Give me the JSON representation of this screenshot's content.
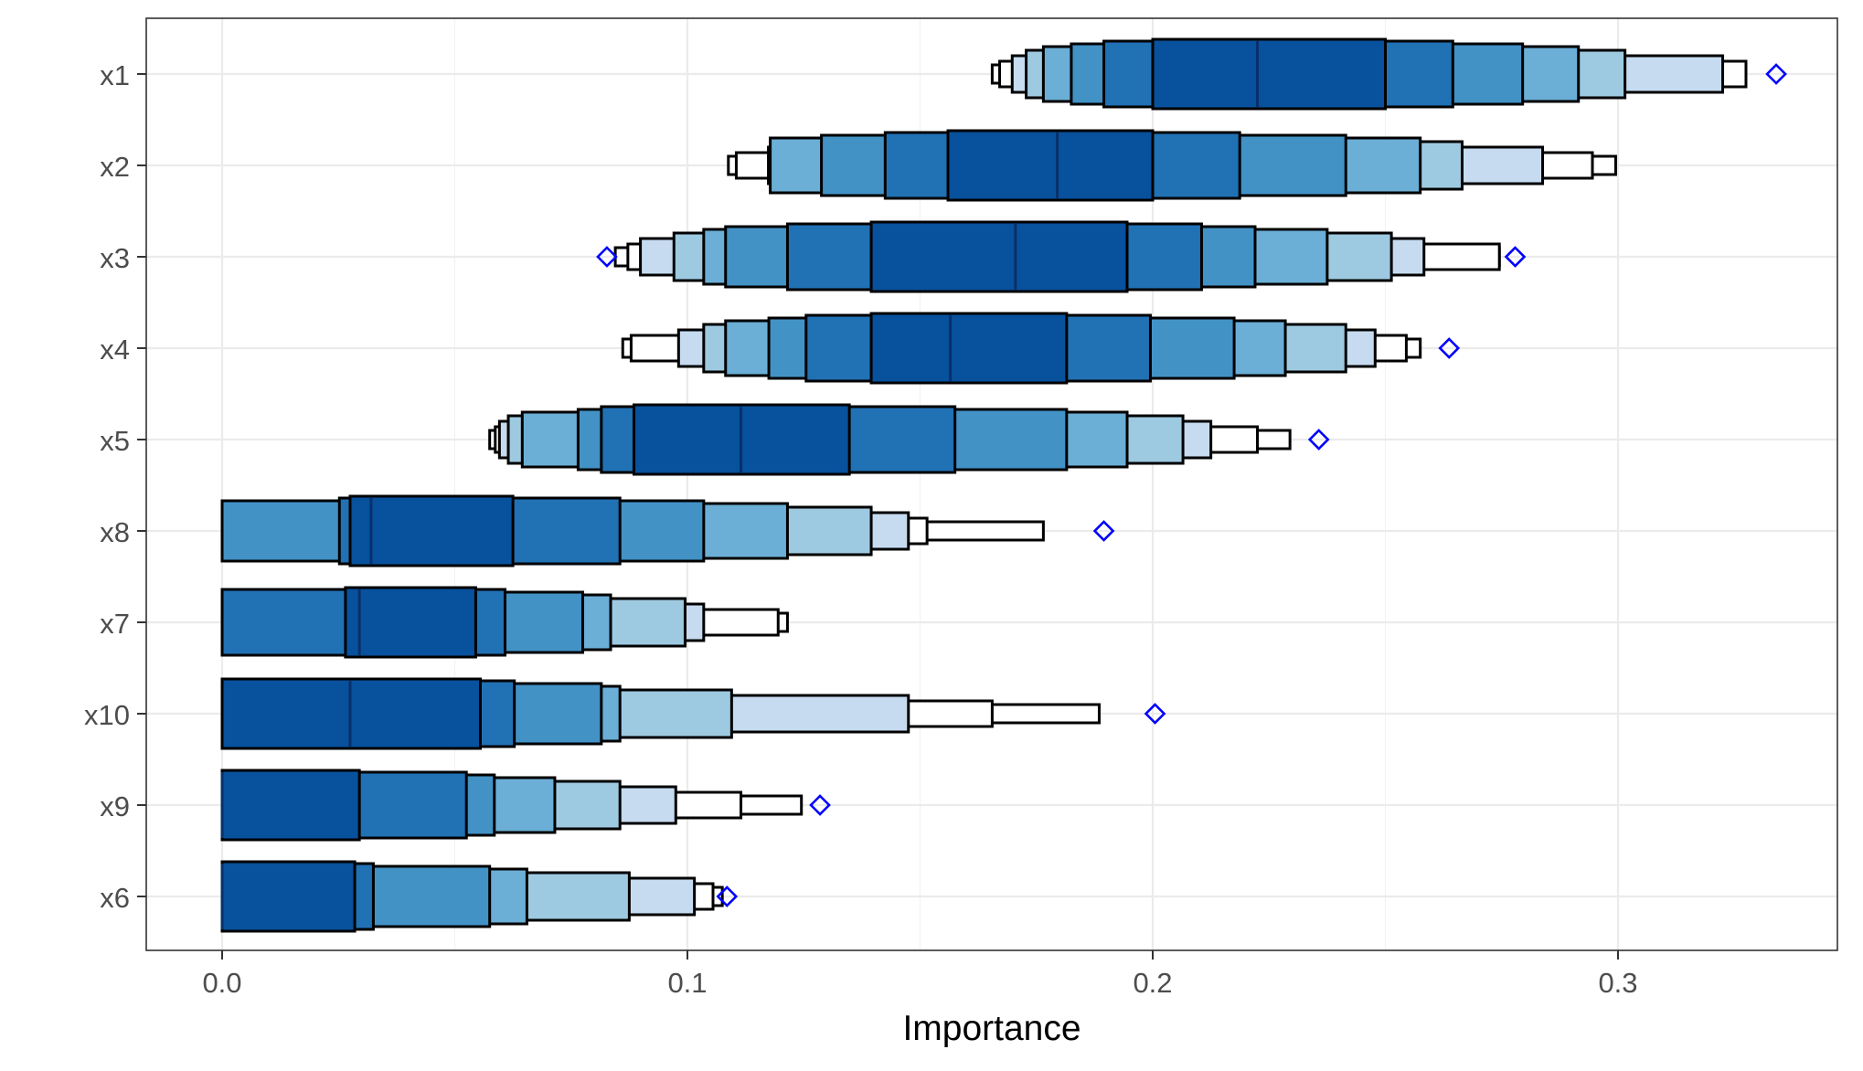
{
  "chart_data": {
    "type": "letter-value boxplot",
    "xlabel": "Importance",
    "ylabel": "",
    "title": "",
    "xlim": [
      -0.0165,
      0.3485
    ],
    "x_ticks": [
      0.0,
      0.1,
      0.2,
      0.3
    ],
    "x_tick_labels": [
      "0.0",
      "0.1",
      "0.2",
      "0.3"
    ],
    "grid": true,
    "shade_colors": [
      "#08519c",
      "#2171b5",
      "#4292c6",
      "#6baed6",
      "#9ecae1",
      "#c6dbef",
      "#ffffff"
    ],
    "outlier_color": "#0000ff",
    "rows": [
      {
        "label": "x1",
        "median": 0.2225,
        "outliers": [
          0.334
        ],
        "boxes": [
          [
            0.2,
            0.25
          ],
          [
            0.1895,
            0.2645
          ],
          [
            0.1825,
            0.2795
          ],
          [
            0.1765,
            0.2915
          ],
          [
            0.1728,
            0.3015
          ],
          [
            0.1698,
            0.3225
          ],
          [
            0.1671,
            0.3275
          ],
          [
            0.1655,
            0.3275
          ]
        ]
      },
      {
        "label": "x2",
        "median": 0.1795,
        "outliers": [],
        "boxes": [
          [
            0.156,
            0.2
          ],
          [
            0.1425,
            0.2187
          ],
          [
            0.1288,
            0.2415
          ],
          [
            0.1178,
            0.2575
          ],
          [
            0.1183,
            0.2665
          ],
          [
            0.1174,
            0.2838
          ],
          [
            0.1105,
            0.2945
          ],
          [
            0.1088,
            0.2995
          ]
        ]
      },
      {
        "label": "x3",
        "median": 0.1705,
        "outliers": [
          0.0827,
          0.2779
        ],
        "boxes": [
          [
            0.1395,
            0.1945
          ],
          [
            0.1215,
            0.2105
          ],
          [
            0.1082,
            0.222
          ],
          [
            0.1035,
            0.2375
          ],
          [
            0.0971,
            0.2513
          ],
          [
            0.0899,
            0.2583
          ],
          [
            0.0872,
            0.2745
          ],
          [
            0.0845,
            0.2745
          ]
        ]
      },
      {
        "label": "x4",
        "median": 0.1565,
        "outliers": [
          0.2637
        ],
        "boxes": [
          [
            0.1395,
            0.1815
          ],
          [
            0.1255,
            0.1995
          ],
          [
            0.1175,
            0.2175
          ],
          [
            0.1082,
            0.2285
          ],
          [
            0.1035,
            0.2415
          ],
          [
            0.0981,
            0.2478
          ],
          [
            0.0879,
            0.2545
          ],
          [
            0.0861,
            0.2575
          ]
        ]
      },
      {
        "label": "x5",
        "median": 0.1115,
        "outliers": [
          0.2357
        ],
        "boxes": [
          [
            0.0885,
            0.1348
          ],
          [
            0.0815,
            0.1575
          ],
          [
            0.0765,
            0.1815
          ],
          [
            0.0645,
            0.1945
          ],
          [
            0.0615,
            0.2065
          ],
          [
            0.0596,
            0.2125
          ],
          [
            0.0587,
            0.2225
          ],
          [
            0.0575,
            0.2295
          ]
        ]
      },
      {
        "label": "x8",
        "median": 0.032,
        "outliers": [
          0.1895
        ],
        "boxes": [
          [
            0.0275,
            0.0625
          ],
          [
            0.0252,
            0.0855
          ],
          [
            0.0,
            0.1035
          ],
          [
            0.0,
            0.1215
          ],
          [
            0.0,
            0.1395
          ],
          [
            0.0,
            0.1475
          ],
          [
            0.0,
            0.1515
          ],
          [
            0.0,
            0.1765
          ]
        ]
      },
      {
        "label": "x7",
        "median": 0.0295,
        "outliers": [],
        "boxes": [
          [
            0.0265,
            0.0545
          ],
          [
            0.0,
            0.0608
          ],
          [
            0.0,
            0.0775
          ],
          [
            0.0,
            0.0835
          ],
          [
            0.0,
            0.0995
          ],
          [
            0.0,
            0.1035
          ],
          [
            0.0,
            0.1195
          ],
          [
            0.0,
            0.1215
          ]
        ]
      },
      {
        "label": "x10",
        "median": 0.0275,
        "outliers": [
          0.2005
        ],
        "boxes": [
          [
            0.0,
            0.0555
          ],
          [
            0.0,
            0.0628
          ],
          [
            0.0,
            0.0815
          ],
          [
            0.0,
            0.0855
          ],
          [
            0.0,
            0.1095
          ],
          [
            0.0,
            0.1475
          ],
          [
            0.0,
            0.1655
          ],
          [
            0.0,
            0.1885
          ]
        ]
      },
      {
        "label": "x9",
        "median": 0.0,
        "outliers": [
          0.1285
        ],
        "boxes": [
          [
            0.0,
            0.0295
          ],
          [
            0.0,
            0.0525
          ],
          [
            0.0,
            0.0585
          ],
          [
            0.0,
            0.0715
          ],
          [
            0.0,
            0.0855
          ],
          [
            0.0,
            0.0975
          ],
          [
            0.0,
            0.1115
          ],
          [
            0.0,
            0.1245
          ]
        ]
      },
      {
        "label": "x6",
        "median": 0.0,
        "outliers": [
          0.1085
        ],
        "boxes": [
          [
            0.0,
            0.0285
          ],
          [
            0.0,
            0.0325
          ],
          [
            0.0,
            0.0575
          ],
          [
            0.0,
            0.0655
          ],
          [
            0.0,
            0.0875
          ],
          [
            0.0,
            0.1015
          ],
          [
            0.0,
            0.1055
          ],
          [
            0.0,
            0.1075
          ]
        ]
      }
    ]
  }
}
